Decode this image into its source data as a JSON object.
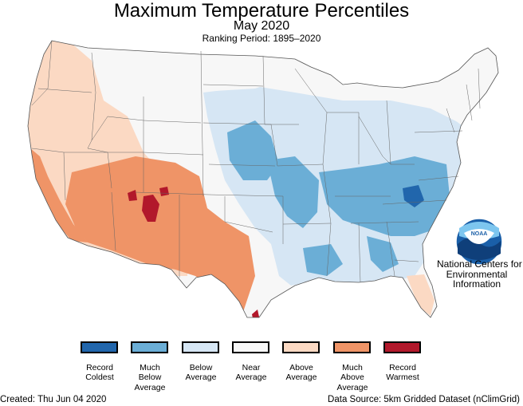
{
  "title": "Maximum Temperature Percentiles",
  "subtitle": "May 2020",
  "ranking_period": "Ranking Period: 1895–2020",
  "org": {
    "logo_text": "NOAA",
    "lines": [
      "National Centers for",
      "Environmental",
      "Information"
    ]
  },
  "legend": [
    {
      "lines": [
        "Record",
        "Coldest"
      ],
      "color": "#2166ac"
    },
    {
      "lines": [
        "Much",
        "Below",
        "Average"
      ],
      "color": "#6baed6"
    },
    {
      "lines": [
        "Below",
        "Average"
      ],
      "color": "#d6e6f4"
    },
    {
      "lines": [
        "Near",
        "Average"
      ],
      "color": "#f7f7f7"
    },
    {
      "lines": [
        "Above",
        "Average"
      ],
      "color": "#fbd9c3"
    },
    {
      "lines": [
        "Much",
        "Above",
        "Average"
      ],
      "color": "#ef9467"
    },
    {
      "lines": [
        "Record",
        "Warmest"
      ],
      "color": "#b2182b"
    }
  ],
  "footer": {
    "created": "Created: Thu Jun 04 2020",
    "source": "Data Source: 5km Gridded Dataset (nClimGrid)"
  }
}
